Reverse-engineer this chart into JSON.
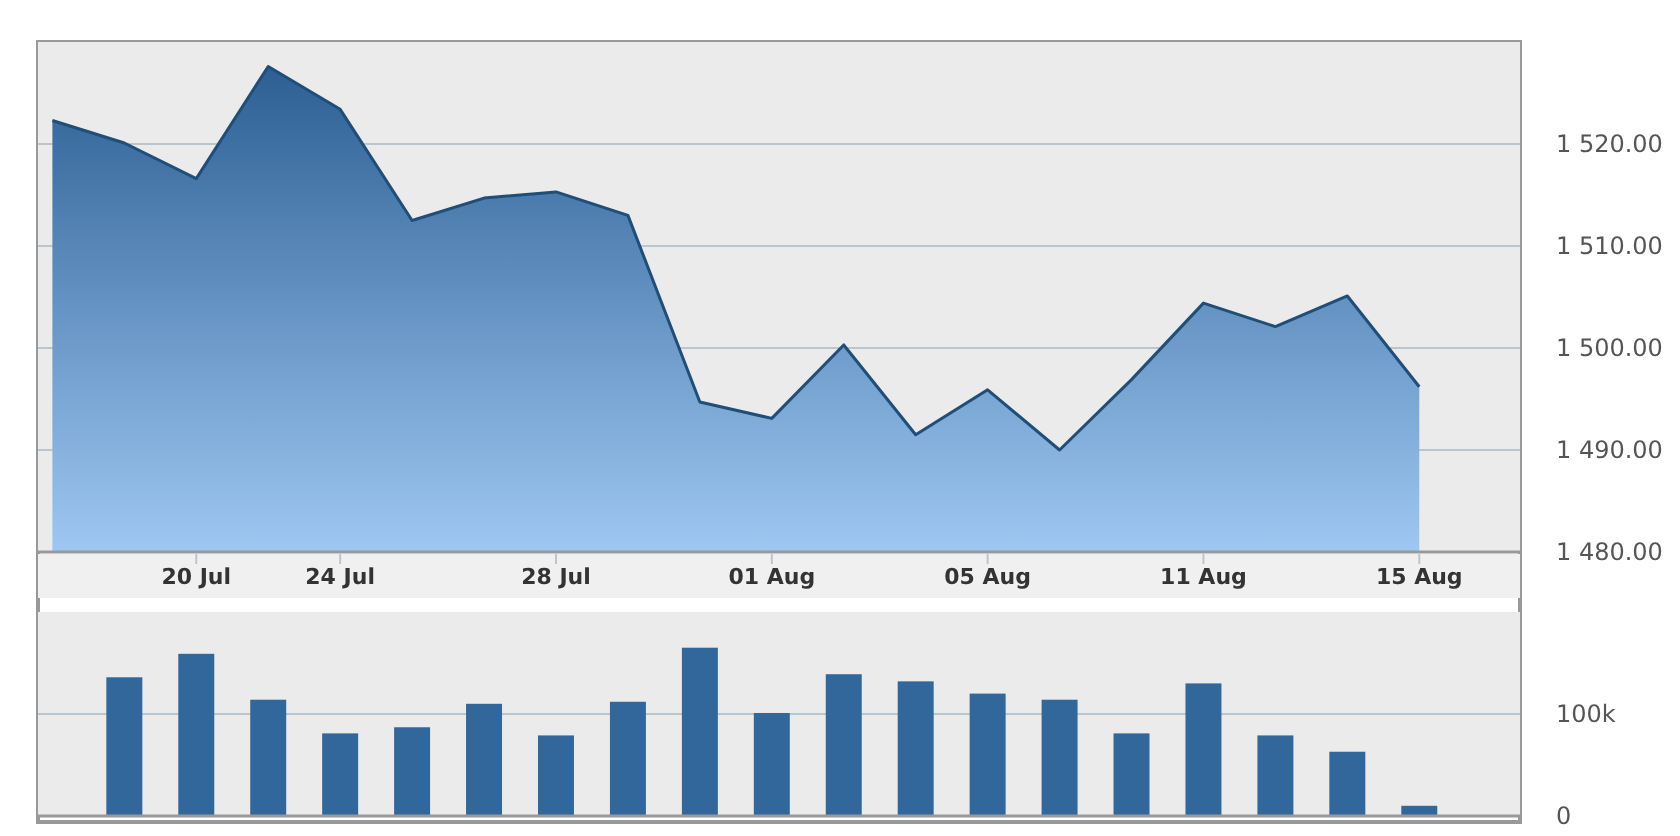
{
  "chart_data": [
    {
      "type": "area",
      "categories": [
        null,
        null,
        "20 Jul",
        null,
        "24 Jul",
        null,
        null,
        "28 Jul",
        null,
        null,
        "01 Aug",
        null,
        null,
        "05 Aug",
        null,
        null,
        "11 Aug",
        null,
        null,
        "15 Aug"
      ],
      "series": [
        {
          "color": "#1f4e79",
          "values": [
            1522.3,
            1520.1,
            1516.6,
            1527.6,
            1523.4,
            1512.5,
            1514.7,
            1515.3,
            1513.0,
            1494.7,
            1493.1,
            1500.3,
            1491.5,
            1495.9,
            1490.0,
            1496.9,
            1504.4,
            1502.1,
            1505.1,
            1496.2
          ]
        }
      ],
      "ylim": [
        1480,
        1530
      ],
      "yticks": [
        {
          "value": 1480,
          "label": "1 480.00"
        },
        {
          "value": 1490,
          "label": "1 490.00"
        },
        {
          "value": 1500,
          "label": "1 500.00"
        },
        {
          "value": 1510,
          "label": "1 510.00"
        },
        {
          "value": 1520,
          "label": "1 520.00"
        }
      ],
      "grid": "y"
    },
    {
      "type": "bar",
      "categories": [
        null,
        null,
        null,
        null,
        null,
        null,
        null,
        null,
        null,
        null,
        null,
        null,
        null,
        null,
        null,
        null,
        null,
        null,
        null,
        null
      ],
      "series": [
        {
          "color": "#31679b",
          "values": [
            null,
            136000,
            159000,
            114000,
            81000,
            87000,
            110000,
            79000,
            112000,
            165000,
            101000,
            139000,
            132000,
            120000,
            114000,
            81000,
            130000,
            79000,
            63000,
            10000
          ]
        }
      ],
      "ylim": [
        0,
        200000
      ],
      "yticks": [
        0,
        {
          "value": 100000,
          "label": "100k"
        }
      ],
      "grid": "y",
      "tick_labels": "y"
    }
  ]
}
